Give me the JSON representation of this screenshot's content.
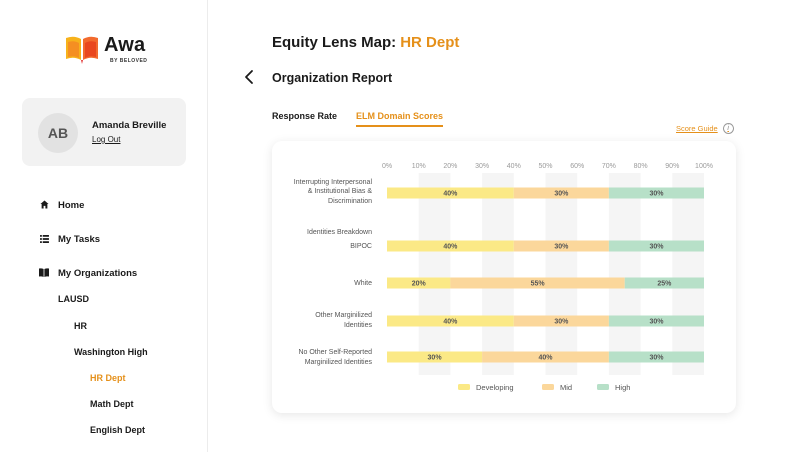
{
  "sidebar": {
    "logo": {
      "word": "Awa",
      "sub": "BY BELOVED"
    },
    "user": {
      "initials": "AB",
      "name": "Amanda Breville",
      "logout_label": "Log Out"
    },
    "nav": {
      "home": {
        "label": "Home",
        "icon": "home-icon"
      },
      "tasks": {
        "label": "My Tasks",
        "icon": "list-icon"
      },
      "orgs": {
        "label": "My Organizations",
        "icon": "book-icon"
      }
    },
    "tree": {
      "lausd": "LAUSD",
      "hr": "HR",
      "washington": "Washington High",
      "hr_dept": "HR Dept",
      "math_dept": "Math Dept",
      "english_dept": "English Dept"
    }
  },
  "header": {
    "title": "Equity Lens Map:",
    "dept": "HR Dept",
    "report_title": "Organization Report"
  },
  "tabs": {
    "response_rate": "Response Rate",
    "elm_scores": "ELM Domain Scores"
  },
  "score_guide": {
    "label": "Score Guide",
    "info_icon": "i"
  },
  "colors": {
    "accent": "#e5901a",
    "developing": "#fbe986",
    "mid": "#fbd79b",
    "high": "#b7e0c8"
  },
  "chart_data": {
    "type": "bar",
    "orientation": "horizontal-stacked",
    "x_ticks": [
      "0%",
      "10%",
      "20%",
      "30%",
      "40%",
      "50%",
      "60%",
      "70%",
      "80%",
      "90%",
      "100%"
    ],
    "xlim": [
      0,
      100
    ],
    "group_label": "Identities Breakdown",
    "rows": [
      {
        "label": [
          "Interrupting Interpersonal",
          "& Institutional Bias &",
          "Discrimination"
        ],
        "values": [
          40,
          30,
          30
        ],
        "labels": [
          "40%",
          "30%",
          "30%"
        ]
      },
      {
        "label": [
          "BIPOC"
        ],
        "values": [
          40,
          30,
          30
        ],
        "labels": [
          "40%",
          "30%",
          "30%"
        ]
      },
      {
        "label": [
          "White"
        ],
        "values": [
          20,
          55,
          25
        ],
        "labels": [
          "20%",
          "55%",
          "25%"
        ]
      },
      {
        "label": [
          "Other Marginilized",
          "Identities"
        ],
        "values": [
          40,
          30,
          30
        ],
        "labels": [
          "40%",
          "30%",
          "30%"
        ]
      },
      {
        "label": [
          "No Other Self-Reported",
          "Marginilized Identities"
        ],
        "values": [
          30,
          40,
          30
        ],
        "labels": [
          "30%",
          "40%",
          "30%"
        ]
      }
    ],
    "series": [
      {
        "name": "Developing",
        "color": "#fbe986"
      },
      {
        "name": "Mid",
        "color": "#fbd79b"
      },
      {
        "name": "High",
        "color": "#b7e0c8"
      }
    ],
    "legend": [
      "Developing",
      "Mid",
      "High"
    ],
    "legend_position": "bottom"
  }
}
